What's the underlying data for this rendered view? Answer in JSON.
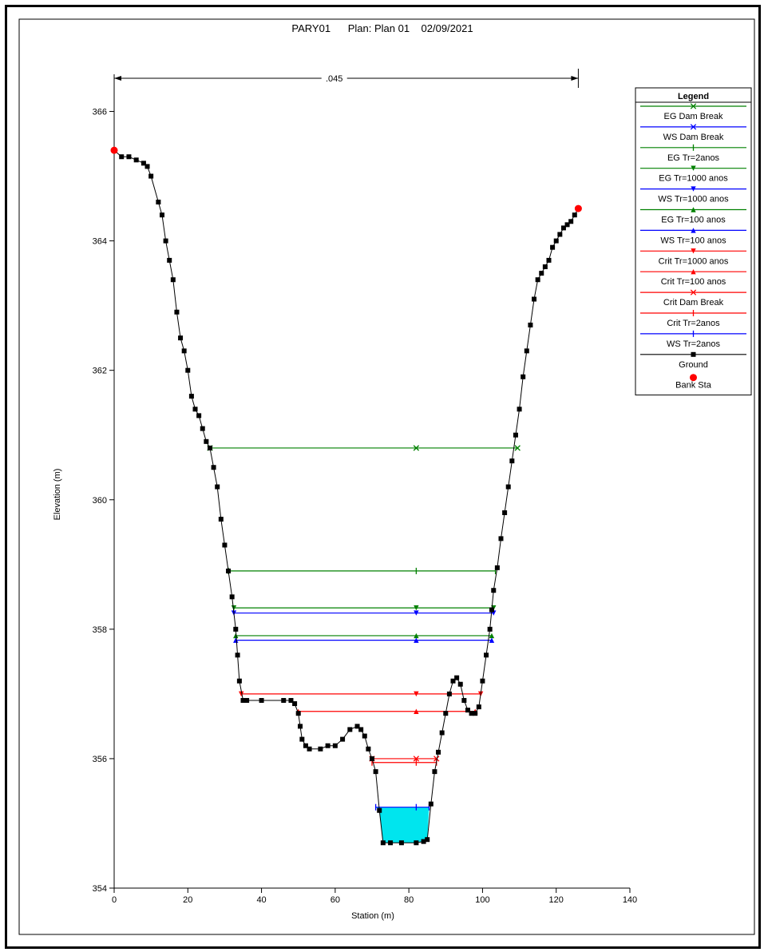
{
  "chart_data": {
    "type": "line",
    "title": "PARY01      Plan: Plan 01    02/09/2021",
    "xlabel": "Station (m)",
    "ylabel": "Elevation (m)",
    "xlim": [
      0,
      140
    ],
    "ylim": [
      354,
      366.5
    ],
    "x_ticks": [
      "0",
      "20",
      "40",
      "60",
      "80",
      "100",
      "120",
      "140"
    ],
    "y_ticks": [
      "354",
      "356",
      "358",
      "360",
      "362",
      "364",
      "366"
    ],
    "roughness": {
      "label": ".045",
      "from": 0,
      "to": 126
    },
    "legend": {
      "title": "Legend",
      "placement": "top-right",
      "entries": [
        {
          "label": "EG Dam Break",
          "color": "#008000",
          "marker": "x"
        },
        {
          "label": "WS Dam Break",
          "color": "#0000ff",
          "marker": "x"
        },
        {
          "label": "EG Tr=2anos",
          "color": "#008000",
          "marker": "|"
        },
        {
          "label": "EG Tr=1000 anos",
          "color": "#008000",
          "marker": "v"
        },
        {
          "label": "WS Tr=1000 anos",
          "color": "#0000ff",
          "marker": "v"
        },
        {
          "label": "EG Tr=100 anos",
          "color": "#008000",
          "marker": "^"
        },
        {
          "label": "WS Tr=100 anos",
          "color": "#0000ff",
          "marker": "^"
        },
        {
          "label": "Crit Tr=1000 anos",
          "color": "#ff0000",
          "marker": "v"
        },
        {
          "label": "Crit Tr=100 anos",
          "color": "#ff0000",
          "marker": "^"
        },
        {
          "label": "Crit Dam Break",
          "color": "#ff0000",
          "marker": "x"
        },
        {
          "label": "Crit Tr=2anos",
          "color": "#ff0000",
          "marker": "|"
        },
        {
          "label": "WS Tr=2anos",
          "color": "#0000ff",
          "marker": "|"
        },
        {
          "label": "Ground",
          "color": "#000000",
          "marker": "square"
        },
        {
          "label": "Bank Sta",
          "color": "#ff0000",
          "marker": "circle"
        }
      ]
    },
    "ground": {
      "x": [
        0,
        2,
        4,
        6,
        8,
        9,
        10,
        12,
        13,
        14,
        15,
        16,
        17,
        18,
        19,
        20,
        21,
        22,
        23,
        24,
        25,
        26,
        27,
        28,
        29,
        30,
        31,
        32,
        33,
        33.5,
        34,
        35,
        36,
        40,
        46,
        48,
        49,
        50,
        50.5,
        51,
        52,
        53,
        56,
        58,
        60,
        62,
        64,
        66,
        67,
        68,
        69,
        70,
        71,
        72,
        73,
        75,
        78,
        82,
        84,
        85,
        86,
        87,
        88,
        89,
        90,
        91,
        92,
        93,
        94,
        95,
        96,
        97,
        98,
        99,
        100,
        101,
        102,
        102.5,
        103,
        104,
        105,
        106,
        107,
        108,
        109,
        110,
        111,
        112,
        113,
        114,
        115,
        116,
        117,
        118,
        119,
        120,
        121,
        122,
        123,
        124,
        125,
        126
      ],
      "y": [
        365.4,
        365.3,
        365.3,
        365.25,
        365.2,
        365.15,
        365.0,
        364.6,
        364.4,
        364.0,
        363.7,
        363.4,
        362.9,
        362.5,
        362.3,
        362.0,
        361.6,
        361.4,
        361.3,
        361.1,
        360.9,
        360.8,
        360.5,
        360.2,
        359.7,
        359.3,
        358.9,
        358.5,
        358.0,
        357.6,
        357.2,
        356.9,
        356.9,
        356.9,
        356.9,
        356.9,
        356.85,
        356.7,
        356.5,
        356.3,
        356.2,
        356.15,
        356.15,
        356.2,
        356.2,
        356.3,
        356.45,
        356.5,
        356.45,
        356.35,
        356.15,
        356.0,
        355.8,
        355.2,
        354.7,
        354.7,
        354.7,
        354.7,
        354.72,
        354.75,
        355.3,
        355.8,
        356.1,
        356.4,
        356.7,
        357.0,
        357.2,
        357.25,
        357.15,
        356.9,
        356.75,
        356.7,
        356.7,
        356.8,
        357.2,
        357.6,
        358.0,
        358.3,
        358.6,
        358.95,
        359.4,
        359.8,
        360.2,
        360.6,
        361.0,
        361.4,
        361.9,
        362.3,
        362.7,
        363.1,
        363.4,
        363.5,
        363.6,
        363.7,
        363.9,
        364.0,
        364.1,
        364.2,
        364.25,
        364.3,
        364.4,
        364.5
      ]
    },
    "bank_stations": [
      {
        "x": 0,
        "y": 365.4
      },
      {
        "x": 126,
        "y": 364.5
      }
    ],
    "water_lines": [
      {
        "name": "EG Dam Break",
        "y": 360.8,
        "x_left": 26,
        "x_right": 109.5,
        "color": "#008000",
        "marker": "x"
      },
      {
        "name": "EG Tr=2anos",
        "y": 358.9,
        "x_left": 31,
        "x_right": 103.5,
        "color": "#008000",
        "marker": "|"
      },
      {
        "name": "EG Tr=1000 anos",
        "y": 358.33,
        "x_left": 32.5,
        "x_right": 103,
        "color": "#008000",
        "marker": "v"
      },
      {
        "name": "WS Tr=1000 anos",
        "y": 358.25,
        "x_left": 32.5,
        "x_right": 103,
        "color": "#0000ff",
        "marker": "v"
      },
      {
        "name": "EG Tr=100 anos",
        "y": 357.9,
        "x_left": 33,
        "x_right": 102.5,
        "color": "#008000",
        "marker": "^"
      },
      {
        "name": "WS Tr=100 anos",
        "y": 357.83,
        "x_left": 33,
        "x_right": 102.5,
        "color": "#0000ff",
        "marker": "^"
      },
      {
        "name": "Crit Tr=1000 anos",
        "y": 357.0,
        "x_left": 34.5,
        "x_right": 99.5,
        "color": "#ff0000",
        "marker": "v"
      },
      {
        "name": "Crit Tr=100 anos",
        "y": 356.73,
        "x_left": 50,
        "x_right": 98,
        "color": "#ff0000",
        "marker": "^"
      },
      {
        "name": "Crit Dam Break",
        "y": 356.0,
        "x_left": 70,
        "x_right": 87.5,
        "color": "#ff0000",
        "marker": "x"
      },
      {
        "name": "Crit Tr=2anos",
        "y": 355.94,
        "x_left": 70,
        "x_right": 87.5,
        "color": "#ff0000",
        "marker": "|"
      },
      {
        "name": "WS Tr=2anos",
        "y": 355.25,
        "x_left": 71,
        "x_right": 85.5,
        "color": "#0000ff",
        "marker": "|"
      }
    ],
    "fill": {
      "series": "WS Tr=2anos",
      "color": "#00e5ee"
    }
  }
}
